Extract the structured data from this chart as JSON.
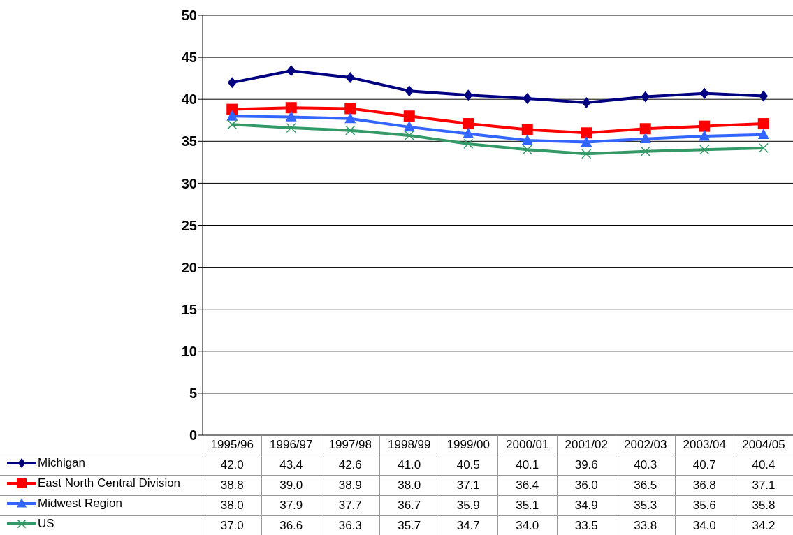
{
  "chart_data": {
    "type": "line",
    "categories": [
      "1995/96",
      "1996/97",
      "1997/98",
      "1998/99",
      "1999/00",
      "2000/01",
      "2001/02",
      "2002/03",
      "2003/04",
      "2004/05"
    ],
    "series": [
      {
        "name": "Michigan",
        "color": "#000080",
        "marker": "diamond",
        "values": [
          42.0,
          43.4,
          42.6,
          41.0,
          40.5,
          40.1,
          39.6,
          40.3,
          40.7,
          40.4
        ],
        "value_labels": [
          "42.0",
          "43.4",
          "42.6",
          "41.0",
          "40.5",
          "40.1",
          "39.6",
          "40.3",
          "40.7",
          "40.4"
        ]
      },
      {
        "name": "East North Central Division",
        "color": "#ff0000",
        "marker": "square",
        "values": [
          38.8,
          39.0,
          38.9,
          38.0,
          37.1,
          36.4,
          36.0,
          36.5,
          36.8,
          37.1
        ],
        "value_labels": [
          "38.8",
          "39.0",
          "38.9",
          "38.0",
          "37.1",
          "36.4",
          "36.0",
          "36.5",
          "36.8",
          "37.1"
        ]
      },
      {
        "name": "Midwest Region",
        "color": "#3366ff",
        "marker": "triangle",
        "values": [
          38.0,
          37.9,
          37.7,
          36.7,
          35.9,
          35.1,
          34.9,
          35.3,
          35.6,
          35.8
        ],
        "value_labels": [
          "38.0",
          "37.9",
          "37.7",
          "36.7",
          "35.9",
          "35.1",
          "34.9",
          "35.3",
          "35.6",
          "35.8"
        ]
      },
      {
        "name": "US",
        "color": "#339966",
        "marker": "cross",
        "values": [
          37.0,
          36.6,
          36.3,
          35.7,
          34.7,
          34.0,
          33.5,
          33.8,
          34.0,
          34.2
        ],
        "value_labels": [
          "37.0",
          "36.6",
          "36.3",
          "35.7",
          "34.7",
          "34.0",
          "33.5",
          "33.8",
          "34.0",
          "34.2"
        ]
      }
    ],
    "ylim": [
      0,
      50
    ],
    "yticks": [
      0,
      5,
      10,
      15,
      20,
      25,
      30,
      35,
      40,
      45,
      50
    ],
    "grid": "y",
    "legend": "bottom left",
    "line_style": "solid"
  }
}
